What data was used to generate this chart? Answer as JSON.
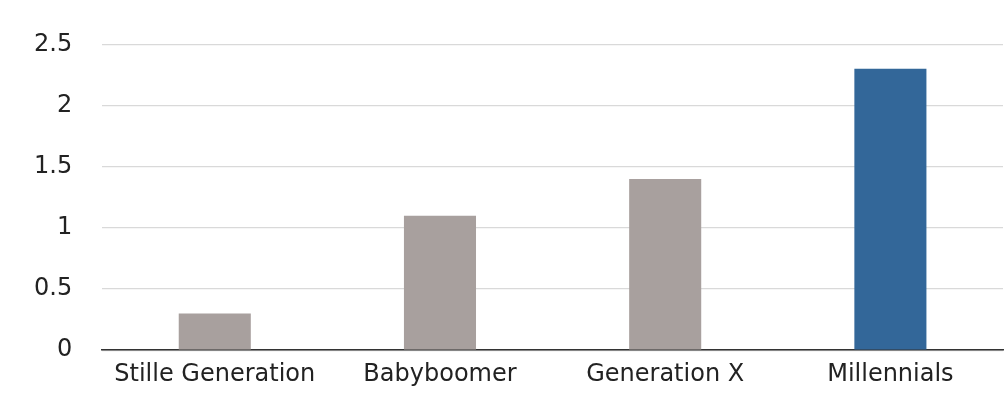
{
  "chart_data": {
    "type": "bar",
    "categories": [
      "Stille Generation",
      "Babyboomer",
      "Generation X",
      "Millennials"
    ],
    "values": [
      0.3,
      1.1,
      1.4,
      2.3
    ],
    "colors": [
      "#a8a09e",
      "#a8a09e",
      "#a8a09e",
      "#336799"
    ],
    "ylim": [
      0,
      2.5
    ],
    "yticks": [
      0,
      0.5,
      1,
      1.5,
      2,
      2.5
    ],
    "grid": "y",
    "legend": false
  }
}
